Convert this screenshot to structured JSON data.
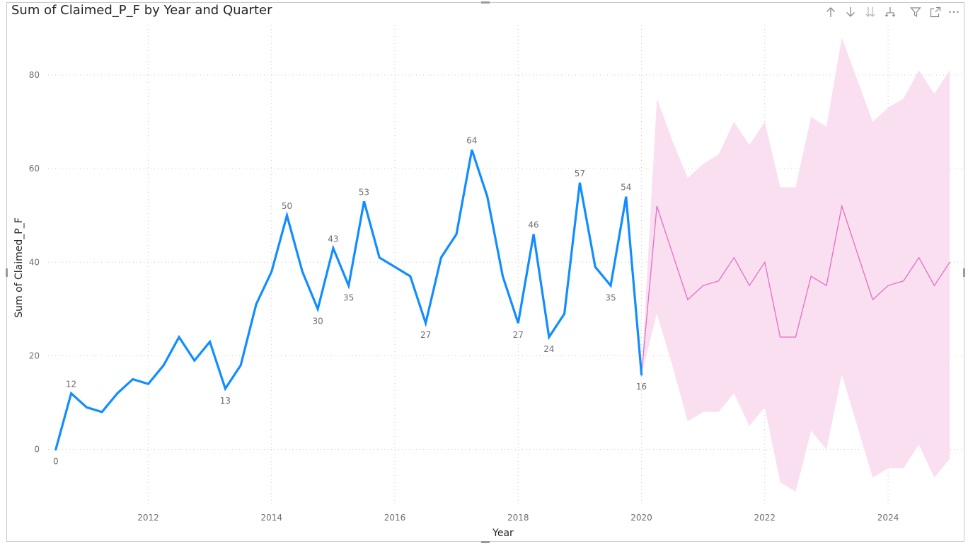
{
  "title": "Sum of Claimed_P_F by Year and Quarter",
  "toolbar": {
    "icons": [
      "drill-up-icon",
      "drill-down-icon",
      "expand-next-level-icon",
      "expand-hierarchy-icon",
      "filter-icon",
      "focus-mode-icon",
      "more-options-icon"
    ]
  },
  "colors": {
    "actual_line": "#118DFF",
    "forecast_line": "#E66CC8",
    "forecast_band": "#FADFF1",
    "gridline": "#c8c8c8"
  },
  "chart_data": {
    "type": "line",
    "title": "Sum of Claimed_P_F by Year and Quarter",
    "xlabel": "Year",
    "ylabel": "Sum of Claimed_P_F",
    "xlim": [
      2010.25,
      2025.25
    ],
    "ylim": [
      -12,
      88
    ],
    "x_ticks": [
      "2012",
      "2014",
      "2016",
      "2018",
      "2020",
      "2022",
      "2024"
    ],
    "x_tick_values": [
      2012,
      2014,
      2016,
      2018,
      2020,
      2022,
      2024
    ],
    "y_ticks": [
      "0",
      "20",
      "40",
      "60",
      "80"
    ],
    "y_tick_values": [
      0,
      20,
      40,
      60,
      80
    ],
    "grid": "dotted",
    "series": [
      {
        "key": "actual",
        "x": [
          2010.5,
          2010.75,
          2011.0,
          2011.25,
          2011.5,
          2011.75,
          2012.0,
          2012.25,
          2012.5,
          2012.75,
          2013.0,
          2013.25,
          2013.5,
          2013.75,
          2014.0,
          2014.25,
          2014.5,
          2014.75,
          2015.0,
          2015.25,
          2015.5,
          2015.75,
          2016.0,
          2016.25,
          2016.5,
          2016.75,
          2017.0,
          2017.25,
          2017.5,
          2017.75,
          2018.0,
          2018.25,
          2018.5,
          2018.75,
          2019.0,
          2019.25,
          2019.5,
          2019.75,
          2020.0
        ],
        "values": [
          0,
          12,
          9,
          8,
          12,
          15,
          14,
          18,
          24,
          19,
          23,
          13,
          18,
          31,
          38,
          50,
          38,
          30,
          43,
          35,
          53,
          41,
          39,
          37,
          27,
          41,
          46,
          64,
          54,
          37,
          27,
          46,
          24,
          29,
          57,
          39,
          35,
          54,
          16
        ],
        "data_labels": [
          {
            "x": 2010.5,
            "text": "0",
            "pos": "below"
          },
          {
            "x": 2010.75,
            "text": "12",
            "pos": "above"
          },
          {
            "x": 2013.25,
            "text": "13",
            "pos": "below"
          },
          {
            "x": 2014.25,
            "text": "50",
            "pos": "above"
          },
          {
            "x": 2014.75,
            "text": "30",
            "pos": "below"
          },
          {
            "x": 2015.0,
            "text": "43",
            "pos": "above"
          },
          {
            "x": 2015.25,
            "text": "35",
            "pos": "below"
          },
          {
            "x": 2015.5,
            "text": "53",
            "pos": "above"
          },
          {
            "x": 2016.5,
            "text": "27",
            "pos": "below"
          },
          {
            "x": 2017.25,
            "text": "64",
            "pos": "above"
          },
          {
            "x": 2018.0,
            "text": "27",
            "pos": "below"
          },
          {
            "x": 2018.25,
            "text": "46",
            "pos": "above"
          },
          {
            "x": 2018.5,
            "text": "24",
            "pos": "below"
          },
          {
            "x": 2019.0,
            "text": "57",
            "pos": "above"
          },
          {
            "x": 2019.5,
            "text": "35",
            "pos": "below"
          },
          {
            "x": 2019.75,
            "text": "54",
            "pos": "above"
          },
          {
            "x": 2020.0,
            "text": "16",
            "pos": "below"
          }
        ]
      },
      {
        "key": "forecast",
        "x": [
          2020.0,
          2020.25,
          2020.5,
          2020.75,
          2021.0,
          2021.25,
          2021.5,
          2021.75,
          2022.0,
          2022.25,
          2022.5,
          2022.75,
          2023.0,
          2023.25,
          2023.5,
          2023.75,
          2024.0,
          2024.25,
          2024.5,
          2024.75,
          2025.0
        ],
        "values": [
          16,
          52,
          42,
          32,
          35,
          36,
          41,
          35,
          40,
          24,
          24,
          37,
          35,
          52,
          42,
          32,
          35,
          36,
          41,
          35,
          40
        ],
        "upper": [
          16,
          75,
          66,
          58,
          61,
          63,
          70,
          65,
          70,
          56,
          56,
          71,
          69,
          88,
          79,
          70,
          73,
          75,
          81,
          76,
          81
        ],
        "lower": [
          16,
          29,
          18,
          6,
          8,
          8,
          12,
          5,
          9,
          -7,
          -9,
          4,
          0,
          16,
          5,
          -6,
          -4,
          -4,
          1,
          -6,
          -2
        ]
      }
    ]
  }
}
